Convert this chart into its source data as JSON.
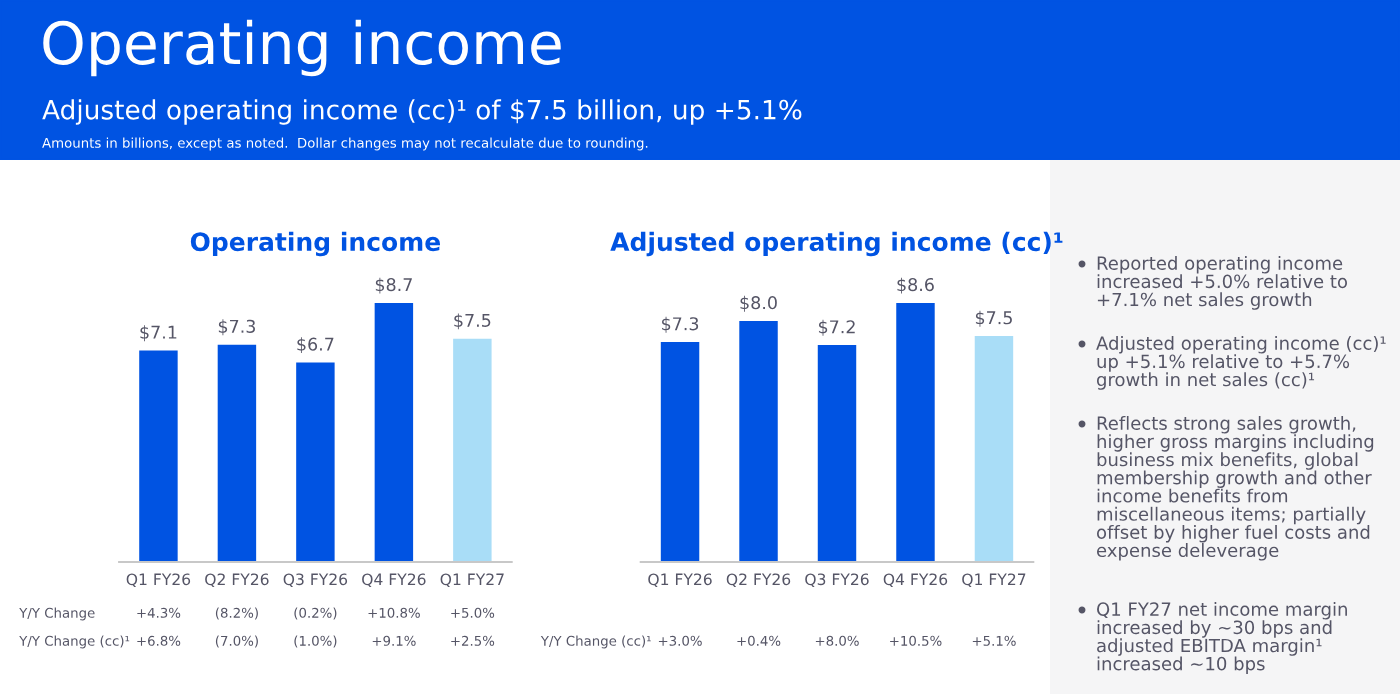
{
  "chart_data": [
    {
      "type": "other",
      "title": "Operating income",
      "subtitle": "Adjusted operating income (cc)¹ of $7.5 billion, up +5.1%",
      "annotations": [
        "Amounts in billions, except as noted.  Dollar changes may not recalculate due to rounding."
      ]
    },
    {
      "type": "bar",
      "title": "Operating income",
      "categories": [
        "Q1 FY26",
        "Q2 FY26",
        "Q3 FY26",
        "Q4 FY26",
        "Q1 FY27"
      ],
      "values": [
        7.1,
        7.3,
        6.7,
        8.7,
        7.5
      ],
      "value_labels": [
        "$7.1",
        "$7.3",
        "$6.7",
        "$8.7",
        "$7.5"
      ],
      "colors": [
        "#0053e2",
        "#0053e2",
        "#0053e2",
        "#0053e2",
        "#a9ddf7"
      ],
      "tick_labels": "x",
      "annotations": [
        "Y/Y Change",
        "+4.3%",
        "(8.2%)",
        "(0.2%)",
        "+10.8%",
        "+5.0%",
        "Y/Y Change (cc)¹",
        "+6.8%",
        "(7.0%)",
        "(1.0%)",
        "+9.1%",
        "+2.5%"
      ]
    },
    {
      "type": "bar",
      "title": "Adjusted operating income (cc)¹",
      "categories": [
        "Q1 FY26",
        "Q2 FY26",
        "Q3 FY26",
        "Q4 FY26",
        "Q1 FY27"
      ],
      "values": [
        7.3,
        8.0,
        7.2,
        8.6,
        7.5
      ],
      "value_labels": [
        "$7.3",
        "$8.0",
        "$7.2",
        "$8.6",
        "$7.5"
      ],
      "colors": [
        "#0053e2",
        "#0053e2",
        "#0053e2",
        "#0053e2",
        "#a9ddf7"
      ],
      "tick_labels": "x",
      "annotations": [
        "Y/Y Change (cc)¹",
        "+3.0%",
        "+0.4%",
        "+8.0%",
        "+10.5%",
        "+5.1%"
      ]
    },
    {
      "type": "other",
      "annotations": [
        "Reported operating income increased +5.0% relative to +7.1% net sales growth",
        "Adjusted operating income (cc)¹ up +5.1% relative to +5.7% growth in net sales (cc)¹",
        "Reflects strong sales growth, higher gross margins including business mix benefits, global membership growth and other income benefits from miscellaneous items; partially offset by higher fuel costs and expense deleverage",
        "Q1 FY27 net income margin increased by ~30 bps and adjusted EBITDA margin¹ increased ~10 bps"
      ]
    }
  ]
}
